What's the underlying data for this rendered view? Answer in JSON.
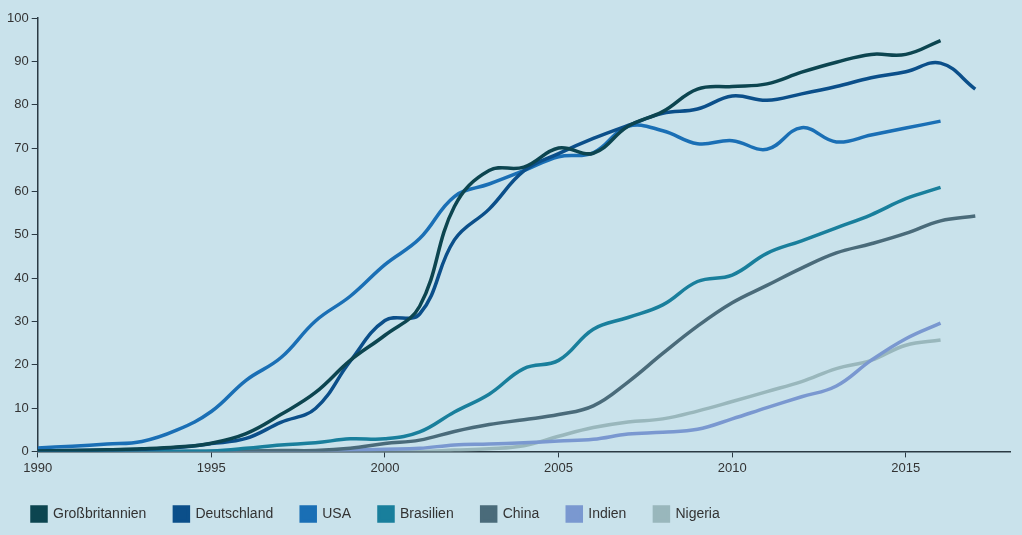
{
  "chart_data": {
    "type": "line",
    "x": [
      1990,
      1991,
      1992,
      1993,
      1994,
      1995,
      1996,
      1997,
      1998,
      1999,
      2000,
      2001,
      2002,
      2003,
      2004,
      2005,
      2006,
      2007,
      2008,
      2009,
      2010,
      2011,
      2012,
      2013,
      2014,
      2015,
      2016,
      2017
    ],
    "series": [
      {
        "name": "Großbritannien",
        "color": "#0c4550",
        "values": [
          0.1,
          0.2,
          0.4,
          0.6,
          1.0,
          1.9,
          4.1,
          8.5,
          13.6,
          21,
          26.8,
          33.5,
          56.5,
          64.8,
          65.6,
          70,
          68.8,
          75,
          78.4,
          83.6,
          84.2,
          84.8,
          87.5,
          89.8,
          91.6,
          91.6,
          94.8,
          null
        ]
      },
      {
        "name": "Deutschland",
        "color": "#0b4f8a",
        "values": [
          0.1,
          0.2,
          0.3,
          0.5,
          0.9,
          1.8,
          3,
          6.7,
          9.9,
          20.8,
          30.2,
          31.7,
          48.8,
          55.9,
          64.7,
          68.7,
          72.2,
          75.2,
          78,
          79,
          82,
          81,
          82.5,
          84.2,
          86.2,
          87.6,
          89.6,
          83.6
        ]
      },
      {
        "name": "USA",
        "color": "#1a6fb5",
        "values": [
          0.8,
          1.2,
          1.7,
          2.3,
          4.9,
          9.2,
          16.4,
          21.6,
          30.1,
          35.8,
          43.1,
          49.1,
          58.8,
          61.7,
          64.8,
          68,
          68.9,
          75,
          74,
          71,
          71.7,
          69.7,
          74.7,
          71.4,
          73,
          74.6,
          76.2,
          null
        ]
      },
      {
        "name": "Brasilien",
        "color": "#197f9c",
        "values": [
          0,
          0,
          0,
          0,
          0,
          0.1,
          0.7,
          1.5,
          2,
          2.9,
          2.9,
          4.5,
          9.1,
          13.2,
          19.1,
          21,
          28.2,
          30.9,
          33.8,
          39.2,
          40.7,
          45.7,
          48.6,
          51.6,
          54.6,
          58.3,
          60.9,
          null
        ]
      },
      {
        "name": "China",
        "color": "#4a6b7a",
        "values": [
          0,
          0,
          0,
          0,
          0,
          0,
          0.1,
          0.2,
          0.2,
          0.7,
          1.8,
          2.6,
          4.6,
          6.2,
          7.3,
          8.5,
          10.5,
          16,
          22.6,
          28.9,
          34.3,
          38.3,
          42.3,
          45.8,
          47.9,
          50.3,
          53.2,
          54.3
        ]
      },
      {
        "name": "Indien",
        "color": "#7a98d0",
        "values": [
          0,
          0,
          0,
          0,
          0,
          0,
          0,
          0,
          0.1,
          0.3,
          0.5,
          0.7,
          1.5,
          1.7,
          2,
          2.4,
          2.8,
          4,
          4.4,
          5.1,
          7.5,
          10.1,
          12.6,
          15.1,
          21,
          26,
          29.6,
          null
        ]
      },
      {
        "name": "Nigeria",
        "color": "#99b7bc",
        "values": [
          0,
          0,
          0,
          0,
          0,
          0,
          0,
          0,
          0,
          0,
          0,
          0,
          0.3,
          0.6,
          1.3,
          3.5,
          5.5,
          6.8,
          7.5,
          9.3,
          11.5,
          13.8,
          16.1,
          19.1,
          21,
          24.5,
          25.7,
          null
        ]
      }
    ],
    "xlim": [
      1990,
      2018
    ],
    "xticks": [
      1990,
      1995,
      2000,
      2005,
      2010,
      2015
    ],
    "ylim": [
      0,
      100
    ],
    "yticks": [
      0,
      10,
      20,
      30,
      40,
      50,
      60,
      70,
      80,
      90,
      100
    ],
    "grid": false,
    "legend": "bottom"
  }
}
